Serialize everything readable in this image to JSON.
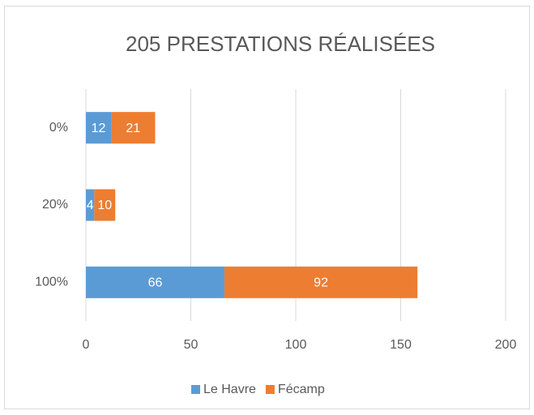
{
  "chart_data": {
    "type": "stacked-barh",
    "title": "205 PRESTATIONS RÉALISÉES",
    "categories": [
      "0%",
      "20%",
      "100%"
    ],
    "series": [
      {
        "name": "Le Havre",
        "color": "#5b9bd5",
        "values": [
          12,
          4,
          66
        ]
      },
      {
        "name": "Fécamp",
        "color": "#ed7d31",
        "values": [
          21,
          10,
          92
        ]
      }
    ],
    "xlim": [
      0,
      200
    ],
    "xticks": [
      0,
      50,
      100,
      150,
      200
    ],
    "grid": true,
    "legend": "bottom"
  }
}
